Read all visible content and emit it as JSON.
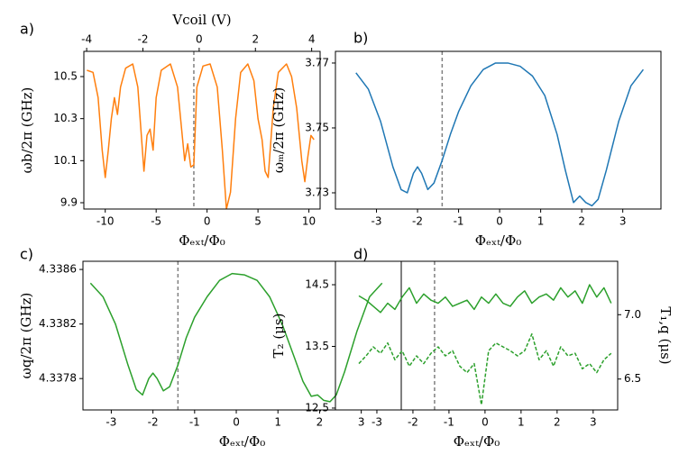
{
  "chart_data": [
    {
      "type": "line",
      "label": "a)",
      "xlabel": "Φₑₓₜ/Φ₀",
      "ylabel": "ωb/2π (GHz)",
      "x2label": "Vcoil (V)",
      "x": [
        -11.8,
        -11.2,
        -10.7,
        -10.3,
        -10.0,
        -9.7,
        -9.4,
        -9.1,
        -8.8,
        -8.5,
        -8.0,
        -7.3,
        -6.8,
        -6.5,
        -6.2,
        -5.9,
        -5.6,
        -5.3,
        -5.0,
        -4.5,
        -3.6,
        -2.9,
        -2.5,
        -2.2,
        -1.9,
        -1.6,
        -1.3,
        -1.0,
        -0.4,
        0.3,
        1.0,
        1.5,
        1.9,
        2.3,
        2.8,
        3.3,
        4.0,
        4.6,
        5.0,
        5.4,
        5.7,
        6.0,
        6.5,
        7.0,
        7.8,
        8.3,
        8.8,
        9.3,
        9.6,
        9.9,
        10.2,
        10.5
      ],
      "series": [
        {
          "color": "#ff7f0e",
          "values": [
            10.53,
            10.52,
            10.4,
            10.15,
            10.02,
            10.15,
            10.3,
            10.4,
            10.32,
            10.45,
            10.54,
            10.56,
            10.45,
            10.25,
            10.05,
            10.22,
            10.25,
            10.15,
            10.4,
            10.53,
            10.56,
            10.45,
            10.25,
            10.1,
            10.18,
            10.07,
            10.08,
            10.45,
            10.55,
            10.56,
            10.45,
            10.15,
            9.87,
            9.95,
            10.3,
            10.52,
            10.56,
            10.48,
            10.3,
            10.2,
            10.05,
            10.02,
            10.35,
            10.52,
            10.56,
            10.5,
            10.35,
            10.1,
            10.0,
            10.12,
            10.22,
            10.2
          ]
        }
      ],
      "xlim": [
        -12.1,
        11.1
      ],
      "ylim": [
        9.87,
        10.62
      ],
      "x2lim": [
        -4.1,
        4.3
      ],
      "xticks": [
        -10,
        -5,
        0,
        5,
        10
      ],
      "yticks": [
        9.9,
        10.1,
        10.3,
        10.5
      ],
      "x2ticks": [
        -4,
        -2,
        0,
        2,
        4
      ],
      "dashed_x": -1.3
    },
    {
      "type": "line",
      "label": "b)",
      "xlabel": "Φₑₓₜ/Φ₀",
      "ylabel": "ωₘ/2π (GHz)",
      "x": [
        -3.5,
        -3.2,
        -2.9,
        -2.6,
        -2.4,
        -2.25,
        -2.1,
        -2.0,
        -1.9,
        -1.75,
        -1.6,
        -1.4,
        -1.2,
        -1.0,
        -0.7,
        -0.4,
        -0.1,
        0.2,
        0.5,
        0.8,
        1.1,
        1.4,
        1.6,
        1.8,
        1.95,
        2.1,
        2.25,
        2.4,
        2.6,
        2.9,
        3.2,
        3.5
      ],
      "series": [
        {
          "color": "#1f77b4",
          "values": [
            3.767,
            3.762,
            3.752,
            3.738,
            3.731,
            3.73,
            3.736,
            3.738,
            3.736,
            3.731,
            3.733,
            3.74,
            3.748,
            3.755,
            3.763,
            3.768,
            3.77,
            3.77,
            3.769,
            3.766,
            3.76,
            3.748,
            3.737,
            3.727,
            3.729,
            3.727,
            3.726,
            3.728,
            3.737,
            3.752,
            3.763,
            3.768
          ]
        }
      ],
      "xlim": [
        -4.0,
        3.93
      ],
      "ylim": [
        3.725,
        3.7736
      ],
      "xticks": [
        -3,
        -2,
        -1,
        0,
        1,
        2,
        3
      ],
      "yticks": [
        3.73,
        3.75,
        3.77
      ],
      "dashed_x": -1.4
    },
    {
      "type": "line",
      "label": "c)",
      "xlabel": "Φₑₓₜ/Φ₀",
      "ylabel": "ωq/2π (GHz)",
      "x": [
        -3.5,
        -3.2,
        -2.9,
        -2.6,
        -2.4,
        -2.25,
        -2.1,
        -2.0,
        -1.9,
        -1.75,
        -1.6,
        -1.4,
        -1.2,
        -1.0,
        -0.7,
        -0.4,
        -0.1,
        0.2,
        0.5,
        0.8,
        1.1,
        1.4,
        1.6,
        1.8,
        1.95,
        2.1,
        2.25,
        2.4,
        2.6,
        2.9,
        3.2,
        3.5
      ],
      "series": [
        {
          "color": "#2ca02c",
          "values": [
            4.3385,
            4.3384,
            4.3382,
            4.3379,
            4.33772,
            4.33768,
            4.3378,
            4.33784,
            4.3378,
            4.33771,
            4.33774,
            4.3379,
            4.3381,
            4.33825,
            4.3384,
            4.33852,
            4.33857,
            4.33856,
            4.33852,
            4.3384,
            4.3382,
            4.33795,
            4.33778,
            4.33767,
            4.33768,
            4.33764,
            4.33763,
            4.33768,
            4.33785,
            4.33815,
            4.3384,
            4.3385
          ]
        }
      ],
      "xlim": [
        -3.68,
        3.96
      ],
      "ylim": [
        4.33757,
        4.33866
      ],
      "xticks": [
        -3,
        -2,
        -1,
        0,
        1,
        2,
        3
      ],
      "yticks": [
        4.3378,
        4.3382,
        4.3386
      ],
      "dashed_x": -1.4
    },
    {
      "type": "line",
      "label": "d)",
      "xlabel": "Φₑₓₜ/Φ₀",
      "ylabel": "T₂ (μs)",
      "y2label": "T₁,q (μs)",
      "x": [
        -3.5,
        -3.3,
        -3.1,
        -2.9,
        -2.7,
        -2.5,
        -2.3,
        -2.1,
        -1.9,
        -1.7,
        -1.5,
        -1.3,
        -1.1,
        -0.9,
        -0.7,
        -0.5,
        -0.3,
        -0.1,
        0.1,
        0.3,
        0.5,
        0.7,
        0.9,
        1.1,
        1.3,
        1.5,
        1.7,
        1.9,
        2.1,
        2.3,
        2.5,
        2.7,
        2.9,
        3.1,
        3.3,
        3.5
      ],
      "series": [
        {
          "color": "#2ca02c",
          "linestyle": "solid",
          "values": [
            14.32,
            14.25,
            14.15,
            14.05,
            14.2,
            14.1,
            14.3,
            14.45,
            14.2,
            14.35,
            14.25,
            14.2,
            14.3,
            14.15,
            14.2,
            14.25,
            14.1,
            14.3,
            14.2,
            14.35,
            14.2,
            14.15,
            14.3,
            14.4,
            14.2,
            14.3,
            14.35,
            14.25,
            14.45,
            14.3,
            14.4,
            14.2,
            14.5,
            14.3,
            14.45,
            14.2
          ]
        },
        {
          "color": "#2ca02c",
          "linestyle": "dashed",
          "axis": "y2",
          "values": [
            6.62,
            6.68,
            6.75,
            6.7,
            6.78,
            6.65,
            6.72,
            6.6,
            6.68,
            6.62,
            6.7,
            6.75,
            6.68,
            6.72,
            6.6,
            6.55,
            6.62,
            6.3,
            6.72,
            6.78,
            6.75,
            6.72,
            6.68,
            6.72,
            6.85,
            6.65,
            6.72,
            6.6,
            6.75,
            6.68,
            6.7,
            6.58,
            6.62,
            6.55,
            6.65,
            6.7
          ]
        }
      ],
      "xlim": [
        -4.15,
        3.68
      ],
      "ylim": [
        12.47,
        14.88
      ],
      "y2lim": [
        6.26,
        7.415
      ],
      "xticks": [
        -3,
        -2,
        -1,
        0,
        1,
        2,
        3
      ],
      "yticks": [
        12.5,
        13.5,
        14.5
      ],
      "y2ticks": [
        6.5,
        {
          "value": 7,
          "label": "7.0"
        }
      ],
      "dashed_x": -1.4
    }
  ]
}
